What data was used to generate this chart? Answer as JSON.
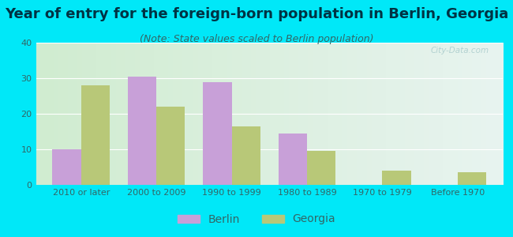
{
  "title": "Year of entry for the foreign-born population in Berlin, Georgia",
  "subtitle": "(Note: State values scaled to Berlin population)",
  "categories": [
    "2010 or later",
    "2000 to 2009",
    "1990 to 1999",
    "1980 to 1989",
    "1970 to 1979",
    "Before 1970"
  ],
  "berlin_values": [
    10,
    30.5,
    29,
    14.5,
    0,
    0
  ],
  "georgia_values": [
    28,
    22,
    16.5,
    9.5,
    4,
    3.5
  ],
  "berlin_color": "#c8a0d8",
  "georgia_color": "#b8c878",
  "background_outer": "#00e8f8",
  "background_inner_left": "#d0ecd0",
  "background_inner_right": "#e8f4f0",
  "ylim": [
    0,
    40
  ],
  "yticks": [
    0,
    10,
    20,
    30,
    40
  ],
  "bar_width": 0.38,
  "title_fontsize": 13,
  "subtitle_fontsize": 9,
  "legend_fontsize": 10,
  "axis_tick_fontsize": 8,
  "title_color": "#003344",
  "subtitle_color": "#336666",
  "tick_color": "#336666"
}
